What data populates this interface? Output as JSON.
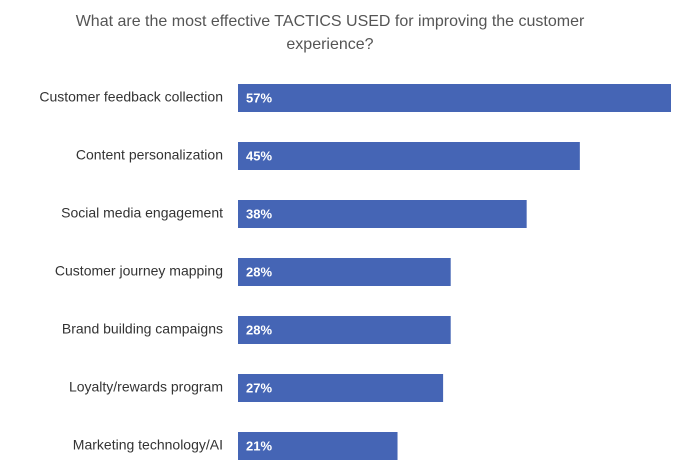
{
  "chart_data": {
    "type": "bar",
    "orientation": "horizontal",
    "title": "What are the most effective TACTICS USED for improving the customer experience?",
    "categories": [
      "Customer feedback collection",
      "Content personalization",
      "Social media engagement",
      "Customer journey mapping",
      "Brand building campaigns",
      "Loyalty/rewards program",
      "Marketing technology/AI"
    ],
    "values": [
      57,
      45,
      38,
      28,
      28,
      27,
      21
    ],
    "value_labels": [
      "57%",
      "45%",
      "38%",
      "28%",
      "28%",
      "27%",
      "21%"
    ],
    "color": "#4565b5"
  }
}
